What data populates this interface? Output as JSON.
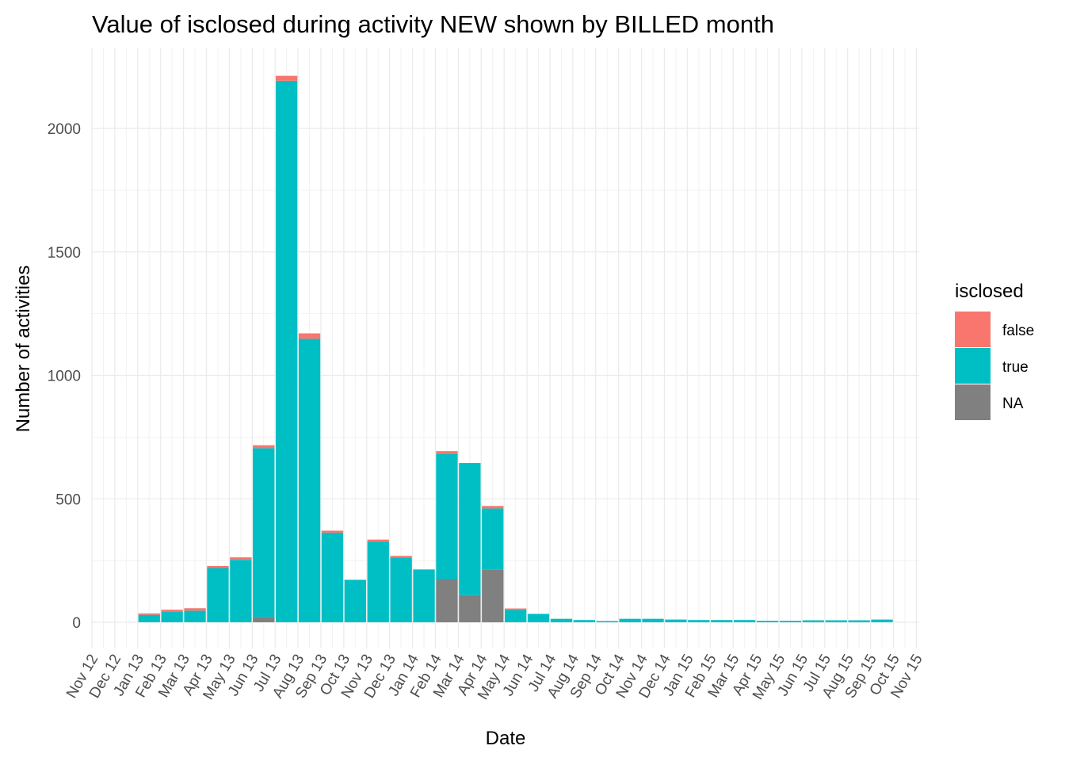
{
  "chart_data": {
    "type": "bar",
    "stacked": true,
    "title": "Value of  isclosed during activity NEW shown by BILLED month",
    "xlabel": "Date",
    "ylabel": "Number of activities",
    "ylim": [
      -100,
      2230
    ],
    "yticks": [
      0,
      500,
      1000,
      1500,
      2000
    ],
    "grid": true,
    "legend_position": "right",
    "legend": {
      "title": "isclosed",
      "entries": [
        "false",
        "true",
        "NA"
      ]
    },
    "x_tick_labels": [
      "Nov 12",
      "Dec 12",
      "Jan 13",
      "Feb 13",
      "Mar 13",
      "Apr 13",
      "May 13",
      "Jun 13",
      "Jul 13",
      "Aug 13",
      "Sep 13",
      "Oct 13",
      "Nov 13",
      "Dec 13",
      "Jan 14",
      "Feb 14",
      "Mar 14",
      "Apr 14",
      "May 14",
      "Jun 14",
      "Jul 14",
      "Aug 14",
      "Sep 14",
      "Oct 14",
      "Nov 14",
      "Dec 14",
      "Jan 15",
      "Feb 15",
      "Mar 15",
      "Apr 15",
      "May 15",
      "Jun 15",
      "Jul 15",
      "Aug 15",
      "Sep 15",
      "Oct 15",
      "Nov 15"
    ],
    "categories": [
      "Jan 13",
      "Feb 13",
      "Mar 13",
      "Apr 13",
      "May 13",
      "Jun 13",
      "Jul 13",
      "Aug 13",
      "Sep 13",
      "Oct 13",
      "Nov 13",
      "Dec 13",
      "Jan 14",
      "Feb 14",
      "Mar 14",
      "Apr 14",
      "May 14",
      "Jun 14",
      "Jul 14",
      "Aug 14",
      "Sep 14",
      "Oct 14",
      "Nov 14",
      "Dec 14",
      "Jan 15",
      "Feb 15",
      "Mar 15",
      "Apr 15",
      "May 15",
      "Jun 15",
      "Jul 15",
      "Aug 15",
      "Sep 15"
    ],
    "series": [
      {
        "name": "NA",
        "color": "#808080",
        "values": [
          0,
          0,
          0,
          0,
          0,
          22,
          0,
          0,
          0,
          0,
          0,
          0,
          0,
          175,
          110,
          213,
          0,
          0,
          0,
          0,
          0,
          0,
          0,
          0,
          0,
          0,
          0,
          0,
          0,
          0,
          0,
          0,
          0
        ]
      },
      {
        "name": "true",
        "color": "#00BFC4",
        "values": [
          30,
          44,
          47,
          220,
          253,
          683,
          2193,
          1148,
          363,
          172,
          327,
          260,
          214,
          508,
          535,
          248,
          50,
          34,
          14,
          9,
          5,
          14,
          14,
          11,
          9,
          9,
          9,
          6,
          6,
          8,
          8,
          8,
          11
        ]
      },
      {
        "name": "false",
        "color": "#F8766D",
        "values": [
          6,
          7,
          10,
          8,
          10,
          12,
          20,
          22,
          8,
          0,
          8,
          9,
          0,
          10,
          0,
          10,
          6,
          0,
          0,
          0,
          0,
          0,
          0,
          0,
          0,
          0,
          0,
          0,
          0,
          0,
          0,
          0,
          0
        ]
      }
    ]
  }
}
